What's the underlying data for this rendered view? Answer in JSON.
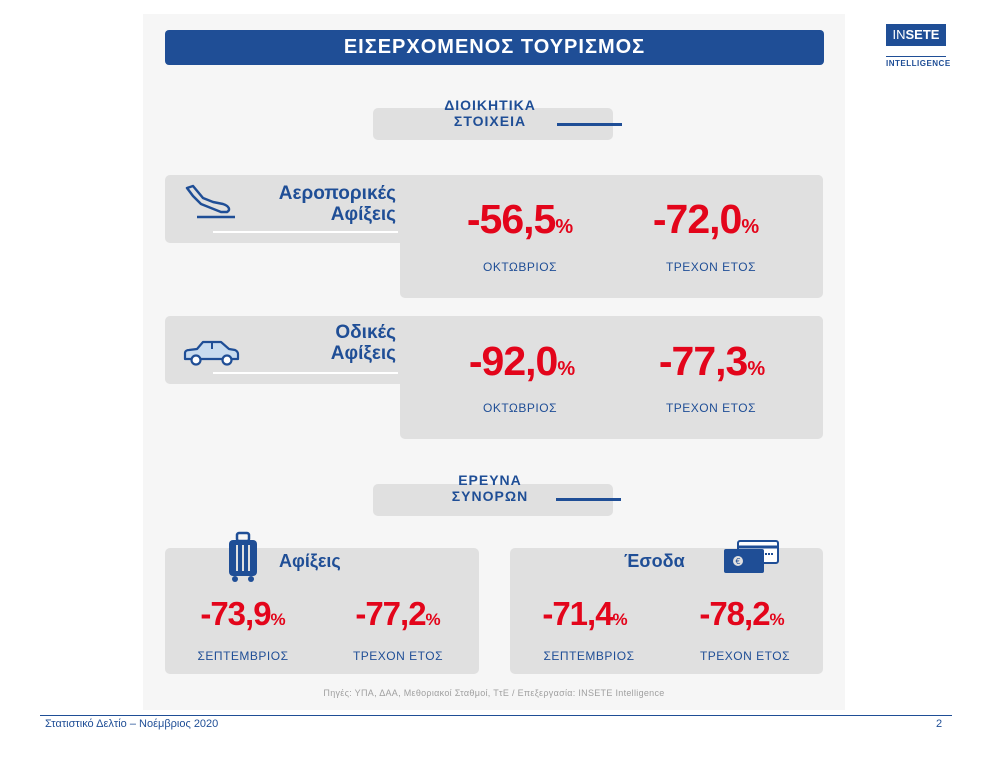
{
  "header": {
    "title": "ΕΙΣΕΡΧΟΜΕΝΟΣ ΤΟΥΡΙΣΜΟΣ"
  },
  "logo": {
    "prefix": "IN",
    "brand": "SETE",
    "sub": "INTELLIGENCE"
  },
  "admin_section": {
    "line1": "ΔΙΟΙΚΗΤΙΚΑ",
    "line2": "ΣΤΟΙΧΕΙΑ"
  },
  "air": {
    "title1": "Αεροπορικές",
    "title2": "Αφίξεις",
    "month_value": "-56,5",
    "month_label": "ΟΚΤΩΒΡΙΟΣ",
    "ytd_value": "-72,0",
    "ytd_label": "ΤΡΕΧΟΝ ΕΤΟΣ",
    "pct": "%"
  },
  "road": {
    "title1": "Οδικές",
    "title2": "Αφίξεις",
    "month_value": "-92,0",
    "month_label": "ΟΚΤΩΒΡΙΟΣ",
    "ytd_value": "-77,3",
    "ytd_label": "ΤΡΕΧΟΝ ΕΤΟΣ",
    "pct": "%"
  },
  "survey_section": {
    "line1": "ΕΡΕΥΝΑ",
    "line2": "ΣΥΝΟΡΩΝ"
  },
  "arrivals": {
    "title": "Αφίξεις",
    "month_value": "-73,9",
    "month_label": "ΣΕΠΤΕΜΒΡΙΟΣ",
    "ytd_value": "-77,2",
    "ytd_label": "ΤΡΕΧΟΝ ΕΤΟΣ",
    "pct": "%"
  },
  "revenue": {
    "title": "Έσοδα",
    "month_value": "-71,4",
    "month_label": "ΣΕΠΤΕΜΒΡΙΟΣ",
    "ytd_value": "-78,2",
    "ytd_label": "ΤΡΕΧΟΝ ΕΤΟΣ",
    "pct": "%"
  },
  "source": "Πηγές: ΥΠΑ, ΔΑΑ, Μεθοριακοί Σταθμοί, ΤτΕ / Επεξεργασία: INSETE Intelligence",
  "footer": {
    "text": "Στατιστικό Δελτίο – Νοέμβριος 2020",
    "page": "2"
  },
  "colors": {
    "brand_blue": "#1f4e96",
    "negative_red": "#e3051b",
    "box_grey": "#e0e0e0"
  },
  "icons": [
    "plane-landing-icon",
    "car-icon",
    "suitcase-icon",
    "credit-card-icon"
  ]
}
